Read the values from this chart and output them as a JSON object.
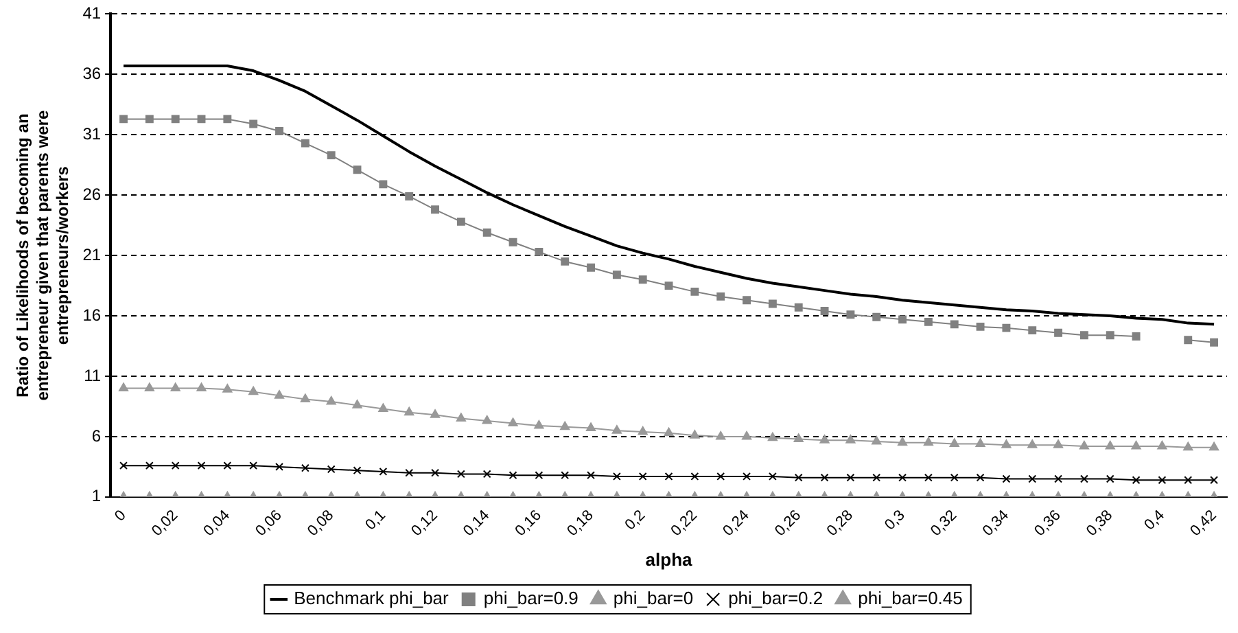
{
  "chart_data": {
    "type": "line",
    "xlabel": "alpha",
    "ylabel": "Ratio of Likelihoods of becoming an entrepreneur given that parents were entrepreneurs/workers",
    "categories": [
      "0",
      null,
      "0,02",
      null,
      "0,04",
      null,
      "0,06",
      null,
      "0,08",
      null,
      "0,1",
      null,
      "0,12",
      null,
      "0,14",
      null,
      "0,16",
      null,
      "0,18",
      null,
      "0,2",
      null,
      "0,22",
      null,
      "0,24",
      null,
      "0,26",
      null,
      "0,28",
      null,
      "0,3",
      null,
      "0,32",
      null,
      "0,34",
      null,
      "0,36",
      null,
      "0,38",
      null,
      "0,4",
      null,
      "0,42"
    ],
    "ylim": [
      1,
      41
    ],
    "yticks": [
      1,
      6,
      11,
      16,
      21,
      26,
      31,
      36,
      41
    ],
    "grid": "y",
    "legend": "bottom",
    "series": [
      {
        "name": "Benchmark phi_bar",
        "color": "#000000",
        "marker": "none",
        "values": [
          36.7,
          36.7,
          36.7,
          36.7,
          36.7,
          36.3,
          35.5,
          34.6,
          33.4,
          32.2,
          30.9,
          29.6,
          28.4,
          27.3,
          26.2,
          25.2,
          24.3,
          23.4,
          22.6,
          21.8,
          21.2,
          20.7,
          20.1,
          19.6,
          19.1,
          18.7,
          18.4,
          18.1,
          17.8,
          17.6,
          17.3,
          17.1,
          16.9,
          16.7,
          16.5,
          16.4,
          16.2,
          16.1,
          16.0,
          15.8,
          15.7,
          15.4,
          15.3
        ]
      },
      {
        "name": "phi_bar=0.9",
        "color": "#808080",
        "marker": "square",
        "values": [
          32.3,
          32.3,
          32.3,
          32.3,
          32.3,
          31.9,
          31.3,
          30.3,
          29.3,
          28.1,
          26.9,
          25.9,
          24.8,
          23.8,
          22.9,
          22.1,
          21.3,
          20.5,
          20.0,
          19.4,
          19.0,
          18.5,
          18.0,
          17.6,
          17.3,
          17.0,
          16.7,
          16.4,
          16.1,
          15.9,
          15.7,
          15.5,
          15.3,
          15.1,
          15.0,
          14.8,
          14.6,
          14.4,
          14.4,
          14.3,
          null,
          14.0,
          13.8
        ]
      },
      {
        "name": "phi_bar=0",
        "color": "#999999",
        "marker": "triangle",
        "values": [
          1,
          1,
          1,
          1,
          1,
          1,
          1,
          1,
          1,
          1,
          1,
          1,
          1,
          1,
          1,
          1,
          1,
          1,
          1,
          1,
          1,
          1,
          1,
          1,
          1,
          1,
          1,
          1,
          1,
          1,
          1,
          1,
          1,
          1,
          1,
          1,
          1,
          1,
          1,
          1,
          1,
          1,
          1
        ]
      },
      {
        "name": "phi_bar=0.2",
        "color": "#000000",
        "marker": "cross",
        "values": [
          3.6,
          3.6,
          3.6,
          3.6,
          3.6,
          3.6,
          3.5,
          3.4,
          3.3,
          3.2,
          3.1,
          3.0,
          3.0,
          2.9,
          2.9,
          2.8,
          2.8,
          2.8,
          2.8,
          2.7,
          2.7,
          2.7,
          2.7,
          2.7,
          2.7,
          2.7,
          2.6,
          2.6,
          2.6,
          2.6,
          2.6,
          2.6,
          2.6,
          2.6,
          2.5,
          2.5,
          2.5,
          2.5,
          2.5,
          2.4,
          2.4,
          2.4,
          2.4
        ]
      },
      {
        "name": "phi_bar=0.45",
        "color": "#999999",
        "marker": "triangle",
        "values": [
          10.0,
          10.0,
          10.0,
          10.0,
          9.9,
          9.7,
          9.4,
          9.1,
          8.9,
          8.6,
          8.3,
          8.0,
          7.8,
          7.5,
          7.3,
          7.1,
          6.9,
          6.8,
          6.7,
          6.5,
          6.4,
          6.3,
          6.1,
          6.0,
          6.0,
          5.9,
          5.8,
          5.7,
          5.7,
          5.6,
          5.5,
          5.5,
          5.4,
          5.4,
          5.3,
          5.3,
          5.3,
          5.2,
          5.2,
          5.2,
          5.2,
          5.1,
          5.1
        ]
      }
    ]
  }
}
